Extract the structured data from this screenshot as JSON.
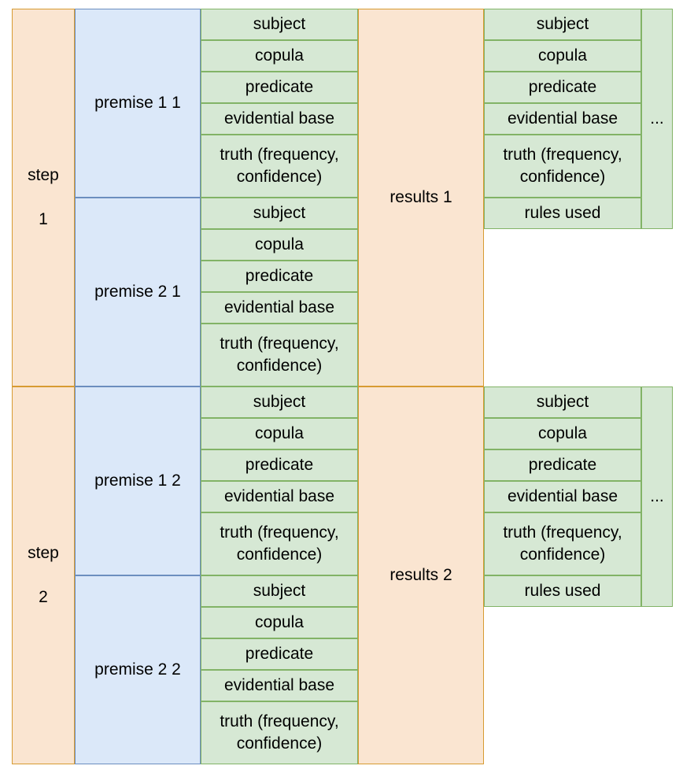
{
  "steps": [
    {
      "label": "step",
      "number": "1",
      "premises": [
        {
          "label": "premise 1 1",
          "fields": [
            "subject",
            "copula",
            "predicate",
            "evidential base",
            "truth (frequency,\nconfidence)"
          ]
        },
        {
          "label": "premise 2 1",
          "fields": [
            "subject",
            "copula",
            "predicate",
            "evidential base",
            "truth (frequency,\nconfidence)"
          ]
        }
      ],
      "results": {
        "label": "results 1",
        "fields": [
          "subject",
          "copula",
          "predicate",
          "evidential base",
          "truth (frequency,\nconfidence)",
          "rules used"
        ],
        "more": "..."
      }
    },
    {
      "label": "step",
      "number": "2",
      "premises": [
        {
          "label": "premise 1 2",
          "fields": [
            "subject",
            "copula",
            "predicate",
            "evidential base",
            "truth (frequency,\nconfidence)"
          ]
        },
        {
          "label": "premise 2 2",
          "fields": [
            "subject",
            "copula",
            "predicate",
            "evidential base",
            "truth (frequency,\nconfidence)"
          ]
        }
      ],
      "results": {
        "label": "results 2",
        "fields": [
          "subject",
          "copula",
          "predicate",
          "evidential base",
          "truth (frequency,\nconfidence)",
          "rules used"
        ],
        "more": "..."
      }
    }
  ],
  "colors": {
    "step_fill": "#fae5d1",
    "step_stroke": "#d79b32",
    "premise_fill": "#dbe8f9",
    "premise_stroke": "#6c8ebf",
    "field_fill": "#d6e8d4",
    "field_stroke": "#82b366"
  }
}
